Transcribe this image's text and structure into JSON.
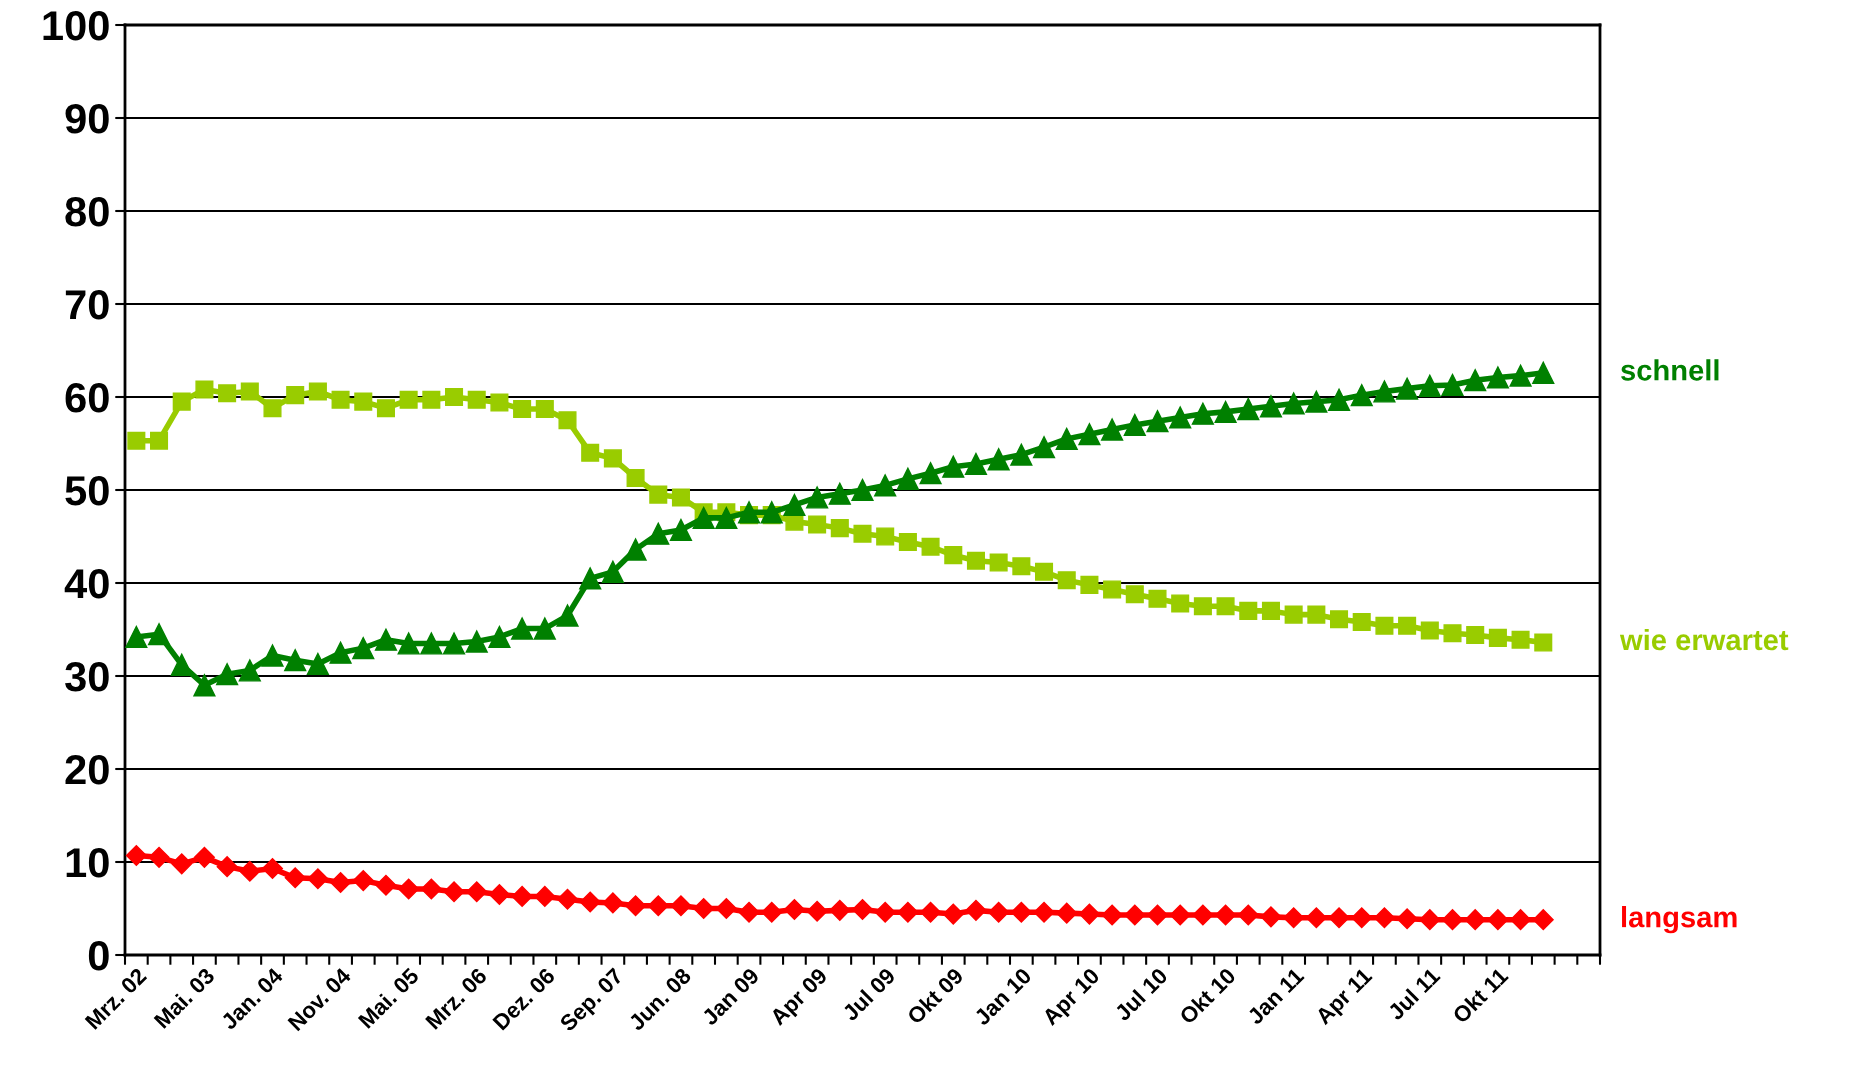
{
  "chart_data": {
    "type": "line",
    "categories": [
      "Mrz. 02",
      null,
      null,
      "Mai. 03",
      null,
      null,
      "Jan. 04",
      null,
      null,
      "Nov. 04",
      null,
      null,
      "Mai. 05",
      null,
      null,
      "Mrz. 06",
      null,
      null,
      "Dez. 06",
      null,
      null,
      "Sep. 07",
      null,
      null,
      "Jun. 08",
      null,
      null,
      "Jan 09",
      null,
      null,
      "Apr 09",
      null,
      null,
      "Jul 09",
      null,
      null,
      "Okt 09",
      null,
      null,
      "Jan 10",
      null,
      null,
      "Apr 10",
      null,
      null,
      "Jul 10",
      null,
      null,
      "Okt 10",
      null,
      null,
      "Jan 11",
      null,
      null,
      "Apr 11",
      null,
      null,
      "Jul 11",
      null,
      null,
      "Okt 11",
      null,
      null
    ],
    "series": [
      {
        "name": "schnell",
        "color": "#008000",
        "marker": "triangle",
        "values": [
          34.2,
          34.5,
          31.2,
          29,
          30.2,
          30.6,
          32.2,
          31.7,
          31.3,
          32.5,
          33,
          33.9,
          33.5,
          33.5,
          33.5,
          33.7,
          34.2,
          35.1,
          35.1,
          36.5,
          40.5,
          41.2,
          43.6,
          45.3,
          45.7,
          47,
          47,
          47.6,
          47.6,
          48.4,
          49.2,
          49.6,
          50,
          50.5,
          51.2,
          51.8,
          52.5,
          52.8,
          53.3,
          53.8,
          54.6,
          55.5,
          56,
          56.5,
          57,
          57.4,
          57.8,
          58.2,
          58.4,
          58.7,
          59,
          59.3,
          59.5,
          59.7,
          60.2,
          60.6,
          60.9,
          61.2,
          61.3,
          61.8,
          62.1,
          62.3,
          62.6
        ]
      },
      {
        "name": "wie erwartet",
        "color": "#99cc00",
        "marker": "square",
        "values": [
          55.3,
          55.3,
          59.5,
          60.8,
          60.4,
          60.6,
          58.8,
          60.2,
          60.6,
          59.7,
          59.5,
          58.8,
          59.7,
          59.7,
          60,
          59.7,
          59.4,
          58.7,
          58.7,
          57.5,
          54,
          53.4,
          51.3,
          49.5,
          49.2,
          47.6,
          47.6,
          47.3,
          47.3,
          46.6,
          46.3,
          45.9,
          45.3,
          45,
          44.4,
          43.9,
          43,
          42.4,
          42.2,
          41.8,
          41.2,
          40.3,
          39.8,
          39.3,
          38.8,
          38.3,
          37.8,
          37.5,
          37.5,
          37,
          37,
          36.6,
          36.6,
          36.1,
          35.8,
          35.4,
          35.4,
          34.9,
          34.6,
          34.4,
          34.1,
          33.9,
          33.6
        ]
      },
      {
        "name": "langsam",
        "color": "#ff0000",
        "marker": "diamond",
        "values": [
          10.7,
          10.5,
          9.8,
          10.5,
          9.5,
          9,
          9.3,
          8.3,
          8.2,
          7.8,
          8,
          7.5,
          7.1,
          7.1,
          6.8,
          6.8,
          6.5,
          6.3,
          6.3,
          6,
          5.7,
          5.6,
          5.3,
          5.3,
          5.3,
          5,
          5,
          4.6,
          4.6,
          4.9,
          4.7,
          4.8,
          4.9,
          4.6,
          4.6,
          4.6,
          4.4,
          4.8,
          4.6,
          4.6,
          4.6,
          4.5,
          4.4,
          4.3,
          4.3,
          4.3,
          4.3,
          4.3,
          4.3,
          4.3,
          4.1,
          4,
          4,
          4,
          4,
          4,
          3.9,
          3.8,
          3.8,
          3.8,
          3.8,
          3.8,
          3.8
        ]
      }
    ],
    "ylim": [
      0,
      100
    ],
    "yticks": [
      0,
      10,
      20,
      30,
      40,
      50,
      60,
      70,
      80,
      90,
      100
    ],
    "grid": "y",
    "legend": "right",
    "line_style": "solid"
  }
}
